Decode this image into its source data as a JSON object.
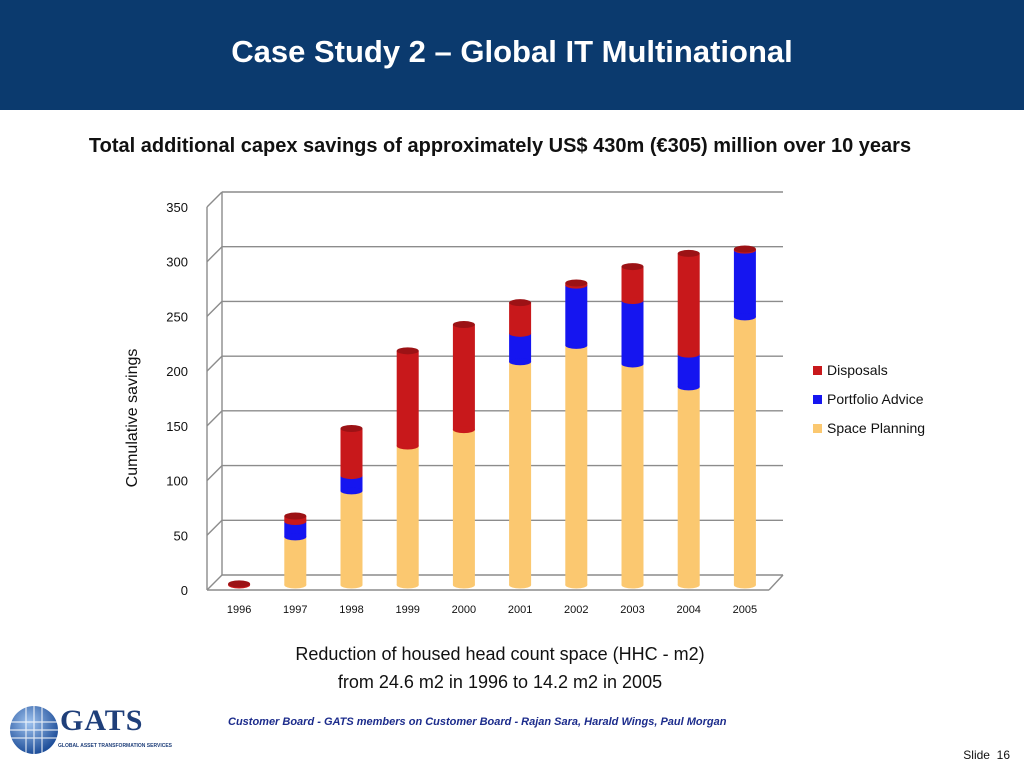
{
  "header": {
    "title": "Case Study 2 – Global IT Multinational"
  },
  "subtitle": "Total additional capex savings of approximately US$ 430m (€305) million over 10 years",
  "colors": {
    "header_bg": "#0b3a6e",
    "disposals": "#c8181b",
    "portfolio": "#1515f0",
    "space": "#fbc870"
  },
  "chart_data": {
    "type": "bar",
    "stacked": true,
    "three_d": true,
    "categories": [
      "1996",
      "1997",
      "1998",
      "1999",
      "2000",
      "2001",
      "2002",
      "2003",
      "2004",
      "2005"
    ],
    "series": [
      {
        "name": "Space Planning",
        "values": [
          0,
          44,
          86,
          127,
          142,
          204,
          219,
          202,
          181,
          245
        ]
      },
      {
        "name": "Portfolio Advice",
        "values": [
          0,
          14,
          14,
          0,
          0,
          26,
          55,
          58,
          30,
          61
        ]
      },
      {
        "name": "Disposals",
        "values": [
          1,
          5,
          43,
          87,
          96,
          28,
          2,
          31,
          92,
          1
        ]
      }
    ],
    "ylabel": "Cumulative savings",
    "xlabel": "",
    "ylim": [
      0,
      350
    ],
    "yticks": [
      0,
      50,
      100,
      150,
      200,
      250,
      300,
      350
    ],
    "grid": true,
    "legend": {
      "placement": "right",
      "items": [
        "Disposals",
        "Portfolio Advice",
        "Space Planning"
      ]
    }
  },
  "caption": {
    "line1": "Reduction of housed head count space (HHC - m2)",
    "line2": "from 24.6 m2 in 1996 to 14.2 m2 in 2005"
  },
  "footer": {
    "text": "Customer Board  - GATS members on Customer Board -  Rajan Sara, Harald Wings, Paul Morgan"
  },
  "logo": {
    "name": "GATS",
    "tagline": "GLOBAL ASSET TRANSFORMATION SERVICES"
  },
  "slide": {
    "label": "Slide",
    "number": "16"
  }
}
